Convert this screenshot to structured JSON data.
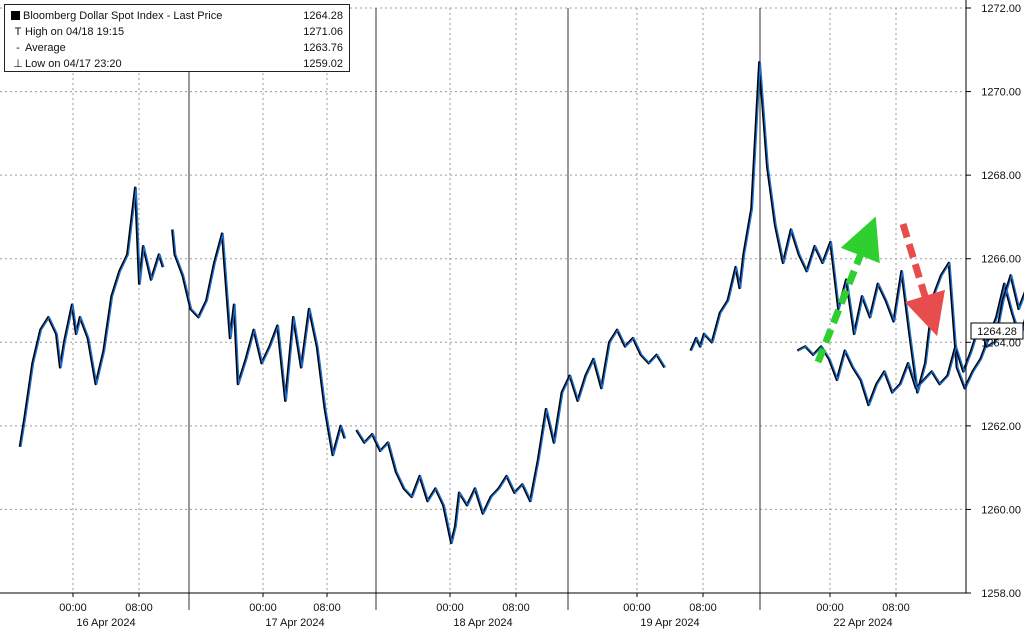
{
  "legend": {
    "title": "Bloomberg Dollar Spot Index - Last Price",
    "last": "1264.28",
    "items": [
      {
        "icon": "T",
        "label": "High on 04/18 19:15",
        "value": "1271.06"
      },
      {
        "icon": "-",
        "label": "Average",
        "value": "1263.76"
      },
      {
        "icon": "⊥",
        "label": "Low on 04/17 23:20",
        "value": "1259.02"
      }
    ]
  },
  "last_price_label": "1264.28",
  "colors": {
    "line": "#1f6fd1",
    "shadow": "#000000",
    "grid": "#9a9a9a",
    "up_arrow": "#2fcf2f",
    "down_arrow": "#e84d4d"
  },
  "chart_data": {
    "type": "line",
    "title": "Bloomberg Dollar Spot Index - Last Price",
    "ylim": [
      1258,
      1272
    ],
    "yticks": [
      1258,
      1260,
      1262,
      1264,
      1266,
      1268,
      1270,
      1272
    ],
    "ytick_labels": [
      "1258.00",
      "1260.00",
      "1262.00",
      "1264.00",
      "1266.00",
      "1268.00",
      "1270.00",
      "1272.00"
    ],
    "xticks": [
      {
        "t": "16 Apr 2024 00:00",
        "label": "00:00"
      },
      {
        "t": "16 Apr 2024 08:00",
        "label": "08:00"
      },
      {
        "t": "17 Apr 2024 00:00",
        "label": "00:00"
      },
      {
        "t": "17 Apr 2024 08:00",
        "label": "08:00"
      },
      {
        "t": "18 Apr 2024 00:00",
        "label": "00:00"
      },
      {
        "t": "18 Apr 2024 08:00",
        "label": "08:00"
      },
      {
        "t": "19 Apr 2024 00:00",
        "label": "00:00"
      },
      {
        "t": "19 Apr 2024 08:00",
        "label": "08:00"
      },
      {
        "t": "22 Apr 2024 00:00",
        "label": "00:00"
      },
      {
        "t": "22 Apr 2024 08:00",
        "label": "08:00"
      }
    ],
    "day_labels": [
      "16 Apr 2024",
      "17 Apr 2024",
      "18 Apr 2024",
      "19 Apr 2024",
      "22 Apr 2024"
    ],
    "series": [
      {
        "name": "Bloomberg Dollar Spot Index - Last Price",
        "segments": [
          {
            "x": [
              -6.6,
              -6,
              -5,
              -4,
              -3,
              -2,
              -1.5,
              -1,
              0,
              0.5,
              1,
              2,
              3,
              4,
              5,
              6,
              7,
              8,
              8.5,
              9,
              10,
              11,
              11.5
            ],
            "y": [
              1261.5,
              1262.2,
              1263.5,
              1264.3,
              1264.6,
              1264.2,
              1263.4,
              1264.0,
              1264.9,
              1264.2,
              1264.6,
              1264.1,
              1263.0,
              1263.8,
              1265.1,
              1265.7,
              1266.1,
              1267.7,
              1265.4,
              1266.3,
              1265.5,
              1266.1,
              1265.8
            ]
          },
          {
            "x": [
              12.7,
              13,
              14,
              15,
              16,
              17,
              18,
              19,
              20,
              20.5,
              21,
              22,
              23,
              24,
              25,
              26,
              27,
              28,
              29,
              30,
              31,
              32,
              33,
              34,
              34.5
            ],
            "y": [
              1266.7,
              1266.1,
              1265.6,
              1264.8,
              1264.6,
              1265.0,
              1265.9,
              1266.6,
              1264.1,
              1264.9,
              1263.0,
              1263.6,
              1264.3,
              1263.5,
              1263.9,
              1264.4,
              1262.6,
              1264.6,
              1263.4,
              1264.8,
              1263.9,
              1262.4,
              1261.3,
              1262.0,
              1261.7
            ]
          },
          {
            "x": [
              36,
              37,
              38,
              39,
              40,
              41,
              42,
              43,
              44,
              45,
              46,
              47,
              48,
              48.5,
              49,
              50,
              51,
              52,
              53,
              54,
              55,
              56,
              57,
              58,
              59,
              60,
              61,
              62,
              63,
              64,
              65,
              66,
              67,
              68,
              69,
              70,
              71,
              72,
              73,
              74,
              75
            ],
            "y": [
              1261.9,
              1261.6,
              1261.8,
              1261.4,
              1261.6,
              1260.9,
              1260.5,
              1260.3,
              1260.8,
              1260.2,
              1260.5,
              1260.1,
              1259.2,
              1259.6,
              1260.4,
              1260.1,
              1260.5,
              1259.9,
              1260.3,
              1260.5,
              1260.8,
              1260.4,
              1260.6,
              1260.2,
              1261.2,
              1262.4,
              1261.6,
              1262.8,
              1263.2,
              1262.6,
              1263.2,
              1263.6,
              1262.9,
              1264.0,
              1264.3,
              1263.9,
              1264.1,
              1263.7,
              1263.5,
              1263.7,
              1263.4
            ]
          },
          {
            "x": [
              78.3,
              79,
              79.5,
              80,
              81,
              82,
              83,
              84,
              84.5,
              85,
              86,
              87,
              88,
              89,
              90,
              91,
              92,
              93,
              94,
              95,
              96,
              97,
              98,
              99,
              100,
              101,
              102,
              103,
              104,
              105,
              106,
              107,
              108,
              109,
              110,
              111,
              112,
              113,
              114,
              115,
              116,
              117,
              118,
              119,
              120,
              121,
              122
            ],
            "y": [
              1263.8,
              1264.1,
              1263.9,
              1264.2,
              1264.0,
              1264.7,
              1265.0,
              1265.8,
              1265.3,
              1266.1,
              1267.2,
              1270.7,
              1268.2,
              1266.8,
              1265.9,
              1266.7,
              1266.1,
              1265.7,
              1266.3,
              1265.9,
              1266.4,
              1264.8,
              1265.5,
              1264.2,
              1265.1,
              1264.6,
              1265.4,
              1265.0,
              1264.5,
              1265.7,
              1264.2,
              1262.8,
              1263.5,
              1265.1,
              1265.6,
              1265.9,
              1263.4,
              1262.9,
              1263.3,
              1263.6,
              1264.1,
              1264.6,
              1265.4,
              1264.7,
              1264.1,
              1264.8,
              1264.4
            ]
          },
          {
            "x": [
              124,
              125,
              126,
              127,
              128,
              129,
              130,
              131,
              132,
              133,
              134,
              135,
              136,
              137,
              138,
              139,
              140,
              141,
              142,
              143,
              144,
              145,
              146,
              147,
              148,
              149,
              150,
              151,
              152,
              153,
              154,
              155,
              156,
              157,
              158,
              159,
              160,
              161,
              162,
              163,
              164,
              165
            ],
            "y": [
              1263.8,
              1263.9,
              1263.7,
              1263.9,
              1263.6,
              1263.1,
              1263.8,
              1263.4,
              1263.1,
              1262.5,
              1263.0,
              1263.3,
              1262.8,
              1263.0,
              1263.5,
              1262.9,
              1263.1,
              1263.3,
              1263.0,
              1263.2,
              1263.9,
              1263.3,
              1263.8,
              1264.4,
              1263.9,
              1264.0,
              1265.0,
              1265.6,
              1264.8,
              1265.3,
              1265.9,
              1267.1,
              1266.2,
              1265.5,
              1265.1,
              1264.6,
              1264.9,
              1264.2,
              1263.8,
              1263.9,
              1263.6,
              1264.28
            ]
          }
        ]
      }
    ]
  }
}
